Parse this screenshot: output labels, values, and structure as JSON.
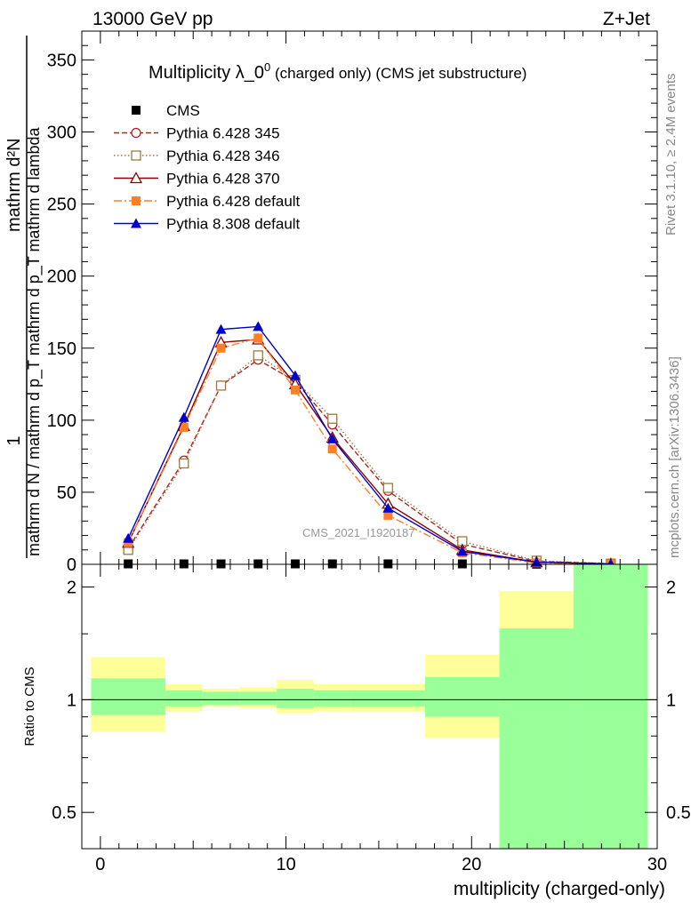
{
  "header": {
    "left": "13000 GeV pp",
    "right": "Z+Jet"
  },
  "side_labels": {
    "rivet": "Rivet 3.1.10, ≥ 2.4M events",
    "mcplots": "mcplots.cern.ch [arXiv:1306.3436]"
  },
  "watermark": "CMS_2021_I1920187",
  "chart_data": [
    {
      "type": "line",
      "title_main": "Multiplicity λ_0",
      "title_sup": "0",
      "title_suffix": " (charged only) (CMS jet substructure)",
      "ylabel_numerator": "1",
      "ylabel_denominator": "mathrm d N / mathrm d p_T mathrm d p_T mathrm d lambda",
      "ylabel_top": "mathrm d²N",
      "xlabel": "multiplicity (charged-only)",
      "xlim": [
        -1,
        30
      ],
      "ylim": [
        0,
        370
      ],
      "yticks": [
        0,
        50,
        100,
        150,
        200,
        250,
        300,
        350
      ],
      "legend_position": "top-left",
      "x": [
        1.5,
        4.5,
        6.5,
        8.5,
        10.5,
        12.5,
        15.5,
        19.5,
        23.5,
        27.5
      ],
      "series": [
        {
          "name": "CMS",
          "color": "#000000",
          "dash": "",
          "marker": "square-filled",
          "values": [
            0.3,
            0.3,
            0.3,
            0.3,
            0.3,
            0.3,
            0.3,
            0.3,
            0.1,
            0.1
          ]
        },
        {
          "name": "Pythia 6.428 345",
          "color": "#b22222",
          "dash": "6,3",
          "marker": "circle-open",
          "values": [
            11,
            72,
            124,
            142,
            127,
            97,
            51,
            14,
            2,
            0.5
          ]
        },
        {
          "name": "Pythia 6.428 346",
          "color": "#a0783c",
          "dash": "1.5,2.5",
          "marker": "square-open",
          "values": [
            10,
            70,
            124,
            145,
            128,
            101,
            53,
            16,
            2.5,
            0.5
          ]
        },
        {
          "name": "Pythia 6.428 370",
          "color": "#8b0000",
          "dash": "",
          "marker": "triangle-open",
          "values": [
            15,
            96,
            154,
            156,
            125,
            88,
            42,
            10,
            1.5,
            0.3
          ]
        },
        {
          "name": "Pythia 6.428 default",
          "color": "#ff7f24",
          "dash": "9,3,2,3",
          "marker": "square-filled",
          "values": [
            15,
            95,
            150,
            157,
            121,
            80,
            34,
            8,
            1,
            0.2
          ]
        },
        {
          "name": "Pythia 8.308 default",
          "color": "#0000cc",
          "dash": "",
          "marker": "triangle-filled",
          "values": [
            18,
            102,
            163,
            165,
            131,
            87,
            39,
            9,
            1.5,
            0.3
          ]
        }
      ]
    },
    {
      "type": "area",
      "ylabel": "Ratio to CMS",
      "xlabel": "multiplicity (charged-only)",
      "scale": "log",
      "xlim": [
        -1,
        30
      ],
      "ylim": [
        0.4,
        2.3
      ],
      "yticks": [
        0.5,
        1,
        2
      ],
      "xticks": [
        0,
        10,
        20,
        30
      ],
      "reference_line": 1,
      "bins": [
        {
          "x0": -0.5,
          "x1": 3.5,
          "stat_lo": 0.91,
          "stat_hi": 1.14,
          "tot_lo": 0.82,
          "tot_hi": 1.3
        },
        {
          "x0": 3.5,
          "x1": 5.5,
          "stat_lo": 0.96,
          "stat_hi": 1.06,
          "tot_lo": 0.93,
          "tot_hi": 1.1
        },
        {
          "x0": 5.5,
          "x1": 7.5,
          "stat_lo": 0.97,
          "stat_hi": 1.05,
          "tot_lo": 0.96,
          "tot_hi": 1.07
        },
        {
          "x0": 7.5,
          "x1": 9.5,
          "stat_lo": 0.97,
          "stat_hi": 1.05,
          "tot_lo": 0.95,
          "tot_hi": 1.08
        },
        {
          "x0": 9.5,
          "x1": 11.5,
          "stat_lo": 0.95,
          "stat_hi": 1.07,
          "tot_lo": 0.92,
          "tot_hi": 1.13
        },
        {
          "x0": 11.5,
          "x1": 13.5,
          "stat_lo": 0.96,
          "stat_hi": 1.06,
          "tot_lo": 0.93,
          "tot_hi": 1.1
        },
        {
          "x0": 13.5,
          "x1": 17.5,
          "stat_lo": 0.96,
          "stat_hi": 1.06,
          "tot_lo": 0.93,
          "tot_hi": 1.1
        },
        {
          "x0": 17.5,
          "x1": 21.5,
          "stat_lo": 0.9,
          "stat_hi": 1.15,
          "tot_lo": 0.79,
          "tot_hi": 1.32
        },
        {
          "x0": 21.5,
          "x1": 25.5,
          "stat_lo": 0.4,
          "stat_hi": 1.55,
          "tot_lo": 0.4,
          "tot_hi": 1.95
        },
        {
          "x0": 25.5,
          "x1": 29.5,
          "stat_lo": 0.4,
          "stat_hi": 2.3,
          "tot_lo": 0.4,
          "tot_hi": 2.3
        }
      ],
      "colors": {
        "stat": "#99ff99",
        "total": "#ffff99"
      }
    }
  ]
}
